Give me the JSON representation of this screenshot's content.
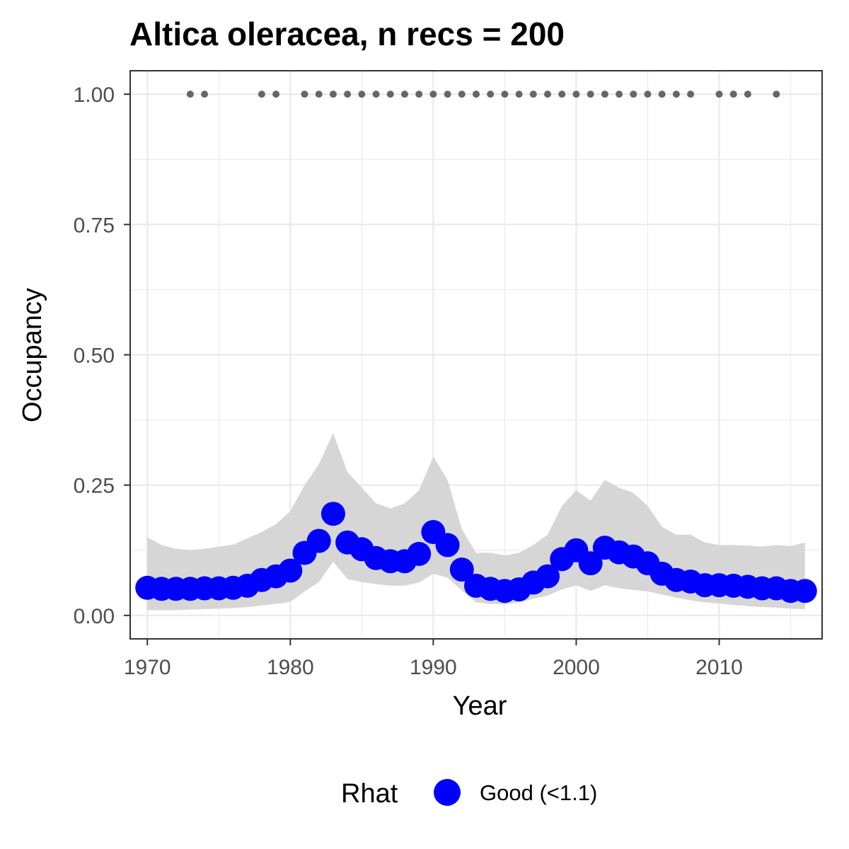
{
  "chart_data": {
    "type": "line",
    "title": "Altica oleracea, n recs = 200",
    "xlabel": "Year",
    "ylabel": "Occupancy",
    "xlim": [
      1968.8,
      2017.2
    ],
    "ylim": [
      -0.045,
      1.045
    ],
    "x_ticks": [
      1970,
      1980,
      1990,
      2000,
      2010
    ],
    "x_minor_ticks": [
      1975,
      1985,
      1995,
      2005,
      2015
    ],
    "y_ticks": [
      0.0,
      0.25,
      0.5,
      0.75,
      1.0
    ],
    "y_tick_labels": [
      "0.00",
      "0.25",
      "0.50",
      "0.75",
      "1.00"
    ],
    "y_minor_ticks": [
      0.125,
      0.375,
      0.625,
      0.875
    ],
    "grid": true,
    "legend": {
      "title": "Rhat",
      "position": "bottom",
      "entries": [
        "Good (<1.1)"
      ]
    },
    "colors": {
      "points": "#0000ff",
      "ribbon": "#d6d6d6",
      "records": "#666666",
      "panel_border": "#333333",
      "grid": "#ebebeb",
      "tick_text": "#4d4d4d"
    },
    "x": [
      1970,
      1971,
      1972,
      1973,
      1974,
      1975,
      1976,
      1977,
      1978,
      1979,
      1980,
      1981,
      1982,
      1983,
      1984,
      1985,
      1986,
      1987,
      1988,
      1989,
      1990,
      1991,
      1992,
      1993,
      1994,
      1995,
      1996,
      1997,
      1998,
      1999,
      2000,
      2001,
      2002,
      2003,
      2004,
      2005,
      2006,
      2007,
      2008,
      2009,
      2010,
      2011,
      2012,
      2013,
      2014,
      2015,
      2016
    ],
    "series": [
      {
        "name": "Good (<1.1)",
        "values": [
          0.053,
          0.051,
          0.051,
          0.051,
          0.052,
          0.052,
          0.053,
          0.057,
          0.068,
          0.075,
          0.086,
          0.12,
          0.143,
          0.195,
          0.14,
          0.127,
          0.11,
          0.104,
          0.104,
          0.118,
          0.16,
          0.135,
          0.088,
          0.057,
          0.051,
          0.047,
          0.05,
          0.063,
          0.075,
          0.108,
          0.125,
          0.1,
          0.13,
          0.121,
          0.113,
          0.1,
          0.08,
          0.068,
          0.065,
          0.058,
          0.058,
          0.057,
          0.055,
          0.052,
          0.052,
          0.047,
          0.047
        ]
      }
    ],
    "ribbon": {
      "lower": [
        0.01,
        0.01,
        0.01,
        0.011,
        0.012,
        0.013,
        0.014,
        0.016,
        0.019,
        0.022,
        0.026,
        0.046,
        0.064,
        0.103,
        0.07,
        0.064,
        0.06,
        0.057,
        0.057,
        0.063,
        0.08,
        0.072,
        0.048,
        0.025,
        0.022,
        0.021,
        0.025,
        0.032,
        0.038,
        0.05,
        0.058,
        0.047,
        0.058,
        0.052,
        0.049,
        0.046,
        0.04,
        0.034,
        0.029,
        0.025,
        0.023,
        0.02,
        0.018,
        0.016,
        0.015,
        0.013,
        0.012
      ],
      "upper": [
        0.15,
        0.135,
        0.128,
        0.125,
        0.128,
        0.132,
        0.136,
        0.148,
        0.16,
        0.175,
        0.2,
        0.25,
        0.29,
        0.35,
        0.275,
        0.245,
        0.215,
        0.205,
        0.215,
        0.24,
        0.305,
        0.26,
        0.165,
        0.12,
        0.12,
        0.115,
        0.12,
        0.135,
        0.155,
        0.21,
        0.24,
        0.22,
        0.26,
        0.245,
        0.235,
        0.21,
        0.17,
        0.155,
        0.155,
        0.14,
        0.135,
        0.135,
        0.134,
        0.132,
        0.135,
        0.133,
        0.14
      ]
    },
    "record_years": [
      1973,
      1974,
      1978,
      1979,
      1981,
      1982,
      1983,
      1984,
      1985,
      1986,
      1987,
      1988,
      1989,
      1990,
      1991,
      1992,
      1993,
      1994,
      1995,
      1996,
      1997,
      1998,
      1999,
      2000,
      2001,
      2002,
      2003,
      2004,
      2005,
      2006,
      2007,
      2008,
      2010,
      2011,
      2012,
      2014
    ],
    "record_value": 1.0
  }
}
